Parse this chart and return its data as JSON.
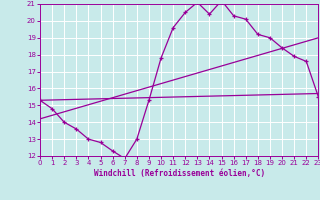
{
  "title": "",
  "xlabel": "Windchill (Refroidissement éolien,°C)",
  "ylabel": "",
  "bg_color": "#c8eaea",
  "line_color": "#990099",
  "grid_color": "#ffffff",
  "xlim": [
    0,
    23
  ],
  "ylim": [
    12,
    21
  ],
  "xticks": [
    0,
    1,
    2,
    3,
    4,
    5,
    6,
    7,
    8,
    9,
    10,
    11,
    12,
    13,
    14,
    15,
    16,
    17,
    18,
    19,
    20,
    21,
    22,
    23
  ],
  "yticks": [
    12,
    13,
    14,
    15,
    16,
    17,
    18,
    19,
    20,
    21
  ],
  "line1_x": [
    0,
    1,
    2,
    3,
    4,
    5,
    6,
    7,
    8,
    9,
    10,
    11,
    12,
    13,
    14,
    15,
    16,
    17,
    18,
    19,
    20,
    21,
    22,
    23
  ],
  "line1_y": [
    15.3,
    14.8,
    14.0,
    13.6,
    13.0,
    12.8,
    12.3,
    11.85,
    13.0,
    15.3,
    17.8,
    19.6,
    20.5,
    21.1,
    20.4,
    21.2,
    20.3,
    20.1,
    19.2,
    19.0,
    18.4,
    17.9,
    17.6,
    15.5
  ],
  "line2_x": [
    0,
    23
  ],
  "line2_y": [
    15.3,
    15.7
  ],
  "line3_x": [
    0,
    23
  ],
  "line3_y": [
    14.2,
    19.0
  ]
}
